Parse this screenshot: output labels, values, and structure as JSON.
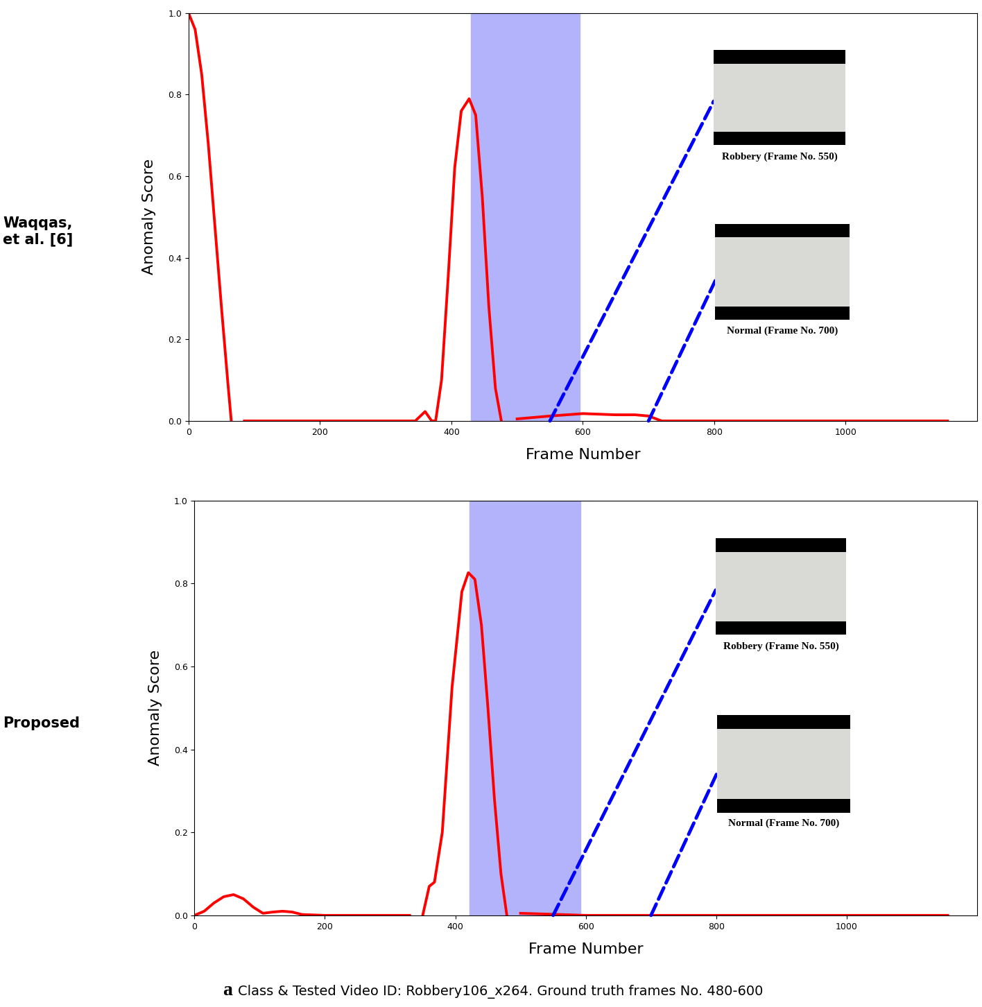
{
  "chart_data": [
    {
      "type": "line",
      "row_label": "Waqqas,\net al. [6]",
      "xlabel": "Frame Number",
      "ylabel": "Anomaly Score",
      "xlim": [
        0,
        1200
      ],
      "ylim": [
        0,
        1
      ],
      "xticks": [
        0,
        200,
        400,
        600,
        800,
        1000
      ],
      "yticks": [
        {
          "value": 0,
          "label": "0.0"
        },
        0.2,
        0.4,
        0.6,
        0.8,
        {
          "value": 1,
          "label": "1.0"
        }
      ],
      "highlight": [
        430,
        595
      ],
      "highlight_color": "#b3b3fb",
      "series": [
        {
          "color": "#ff0000",
          "x": [
            0,
            10,
            20,
            30,
            40,
            50,
            60,
            65,
            75,
            85,
            150,
            250,
            330,
            345,
            360,
            370,
            376,
            385,
            395,
            405,
            415,
            427,
            437,
            447,
            457,
            467,
            476,
            490,
            500,
            550,
            600,
            650,
            680,
            700,
            720,
            800,
            900,
            1000,
            1100,
            1155
          ],
          "values": [
            1.0,
            0.96,
            0.85,
            0.68,
            0.48,
            0.28,
            0.09,
            0.0,
            null,
            0.0,
            0.0,
            0.0,
            0.0,
            0.0,
            0.023,
            0.0,
            0.0,
            0.1,
            0.35,
            0.62,
            0.76,
            0.79,
            0.75,
            0.55,
            0.28,
            0.08,
            0.0,
            null,
            0.005,
            0.012,
            0.018,
            0.015,
            0.015,
            0.012,
            0.0,
            0.0,
            0.0,
            0.0,
            0.0,
            0.0
          ]
        }
      ],
      "annotations": [
        {
          "text": "Robbery (Frame No. 550)",
          "frame": 550
        },
        {
          "text": "Normal (Frame No. 700)",
          "frame": 700
        }
      ],
      "annotation_color": "#0000ff"
    },
    {
      "type": "line",
      "row_label": "Proposed",
      "xlabel": "Frame Number",
      "ylabel": "Anomaly Score",
      "xlim": [
        0,
        1200
      ],
      "ylim": [
        0,
        1
      ],
      "xticks": [
        0,
        200,
        400,
        600,
        800,
        1000
      ],
      "yticks": [
        {
          "value": 0,
          "label": "0.0"
        },
        0.2,
        0.4,
        0.6,
        0.8,
        {
          "value": 1,
          "label": "1.0"
        }
      ],
      "highlight": [
        422,
        592
      ],
      "highlight_color": "#b3b3fb",
      "series": [
        {
          "color": "#ff0000",
          "x": [
            0,
            15,
            30,
            45,
            60,
            75,
            90,
            105,
            120,
            135,
            150,
            165,
            200,
            330,
            340,
            350,
            360,
            368,
            380,
            395,
            410,
            420,
            430,
            440,
            450,
            460,
            470,
            479,
            490,
            500,
            600,
            800,
            1000,
            1155
          ],
          "values": [
            0,
            0.01,
            0.03,
            0.045,
            0.05,
            0.04,
            0.02,
            0.005,
            0.008,
            0.01,
            0.008,
            0.002,
            0,
            0,
            null,
            0,
            0.07,
            0.08,
            0.2,
            0.55,
            0.78,
            0.826,
            0.81,
            0.7,
            0.5,
            0.28,
            0.1,
            0,
            null,
            0.005,
            0,
            0,
            0,
            0
          ]
        }
      ],
      "annotations": [
        {
          "text": "Robbery (Frame No. 550)",
          "frame": 550
        },
        {
          "text": "Normal (Frame No. 700)",
          "frame": 700
        }
      ],
      "annotation_color": "#0000ff"
    }
  ],
  "panel": "a",
  "caption": "Class & Tested Video ID: Robbery106_x264. Ground truth frames No. 480-600"
}
